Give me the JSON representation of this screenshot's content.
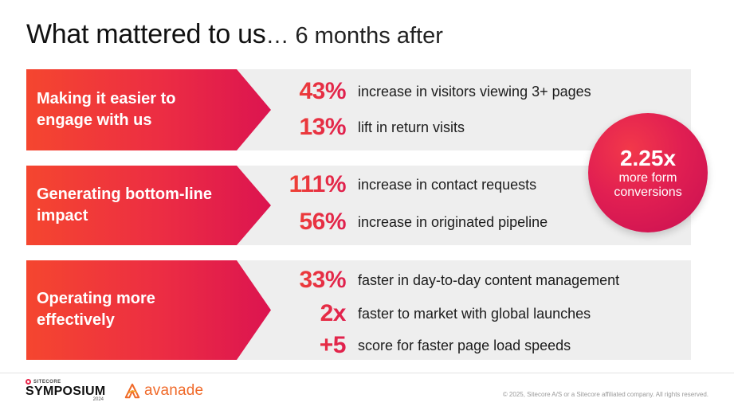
{
  "title": {
    "main": "What mattered to us",
    "sub": "… 6 months after"
  },
  "rows": [
    {
      "label": "Making it easier to engage with us",
      "stats": [
        {
          "value": "43%",
          "desc": "increase in visitors viewing 3+ pages"
        },
        {
          "value": "13%",
          "desc": "lift in return visits"
        }
      ]
    },
    {
      "label": "Generating bottom-line impact",
      "stats": [
        {
          "value": "111%",
          "desc": "increase in contact requests"
        },
        {
          "value": "56%",
          "desc": "increase in originated pipeline"
        }
      ]
    },
    {
      "label": "Operating more effectively",
      "stats": [
        {
          "value": "33%",
          "desc": "faster in day-to-day content management"
        },
        {
          "value": "2x",
          "desc": "faster to market with global launches"
        },
        {
          "value": "+5",
          "desc": "score for faster page load speeds"
        }
      ]
    }
  ],
  "highlight": {
    "value": "2.25x",
    "label": "more form conversions"
  },
  "footer": {
    "sitecore_small": "SITECORE",
    "symposium": "SYMPOSIUM",
    "symposium_year": "2024",
    "partner": "avanade",
    "copyright": "© 2025, Sitecore A/S or a Sitecore affiliated company. All rights reserved."
  },
  "colors": {
    "accent_orange": "#f5462f",
    "accent_red": "#e11f52",
    "row_background": "#eeeeee",
    "avanade_orange": "#f06a2a"
  }
}
